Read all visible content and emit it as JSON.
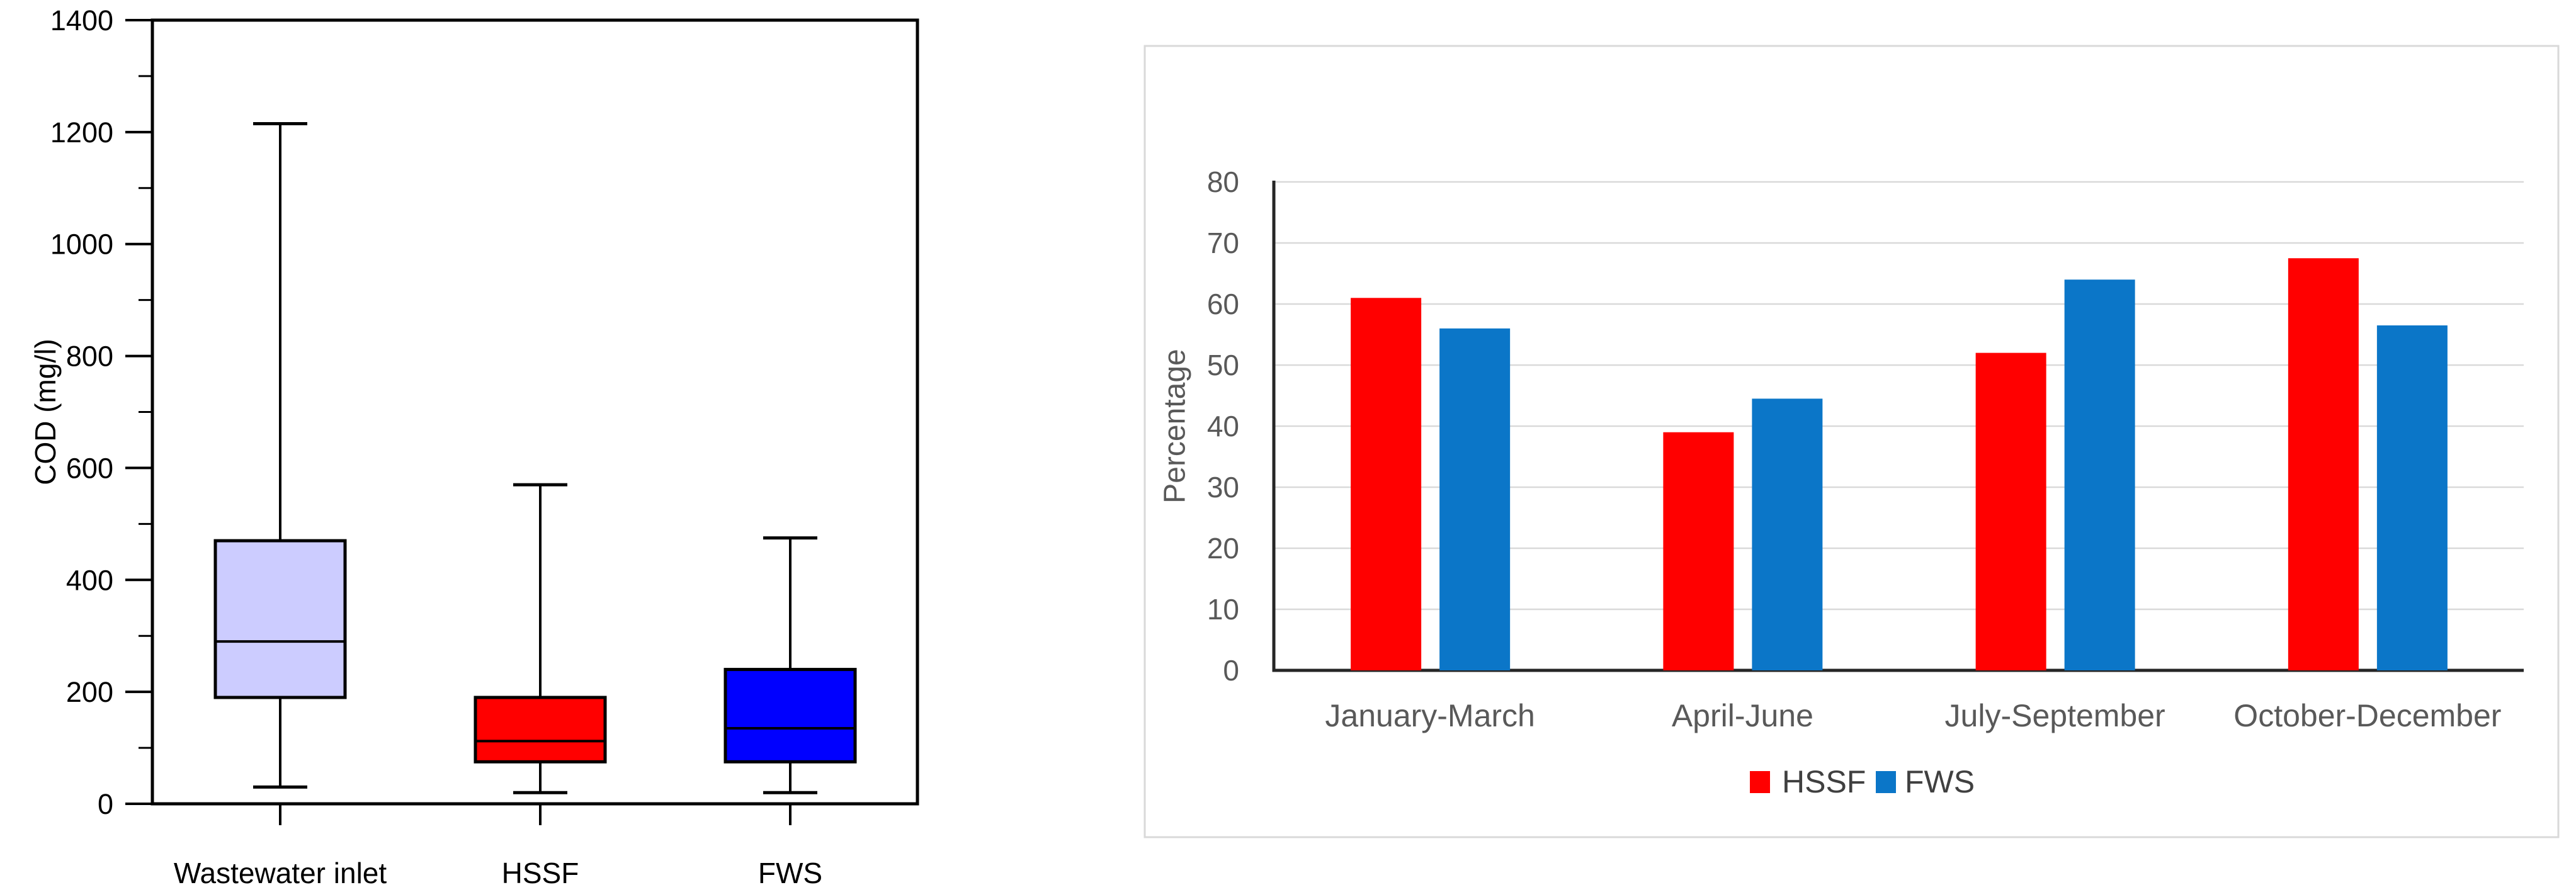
{
  "figure": {
    "background": "#ffffff"
  },
  "chart_data": [
    {
      "type": "box",
      "title": "",
      "ylabel": "COD (mg/l)",
      "ylim": [
        0,
        1400
      ],
      "ytick_major": 200,
      "ytick_minor": 100,
      "yticks": [
        0,
        200,
        400,
        600,
        800,
        1000,
        1200,
        1400
      ],
      "grid": false,
      "frame": true,
      "axis_color": "#000000",
      "text_color": "#000000",
      "legend_position": "none",
      "categories": [
        "Wastewater inlet",
        "HSSF",
        "FWS"
      ],
      "boxes": [
        {
          "label": "Wastewater inlet",
          "min": 30,
          "q1": 190,
          "median": 290,
          "q3": 470,
          "max": 1215,
          "fill": "#CCCCFF"
        },
        {
          "label": "HSSF",
          "min": 20,
          "q1": 75,
          "median": 112,
          "q3": 190,
          "max": 570,
          "fill": "#FF0000"
        },
        {
          "label": "FWS",
          "min": 20,
          "q1": 75,
          "median": 135,
          "q3": 240,
          "max": 475,
          "fill": "#0000FF"
        }
      ]
    },
    {
      "type": "bar",
      "title": "",
      "ylabel": "Percentage",
      "xlabel": "",
      "ylim": [
        0,
        80
      ],
      "ytick_step": 10,
      "yticks": [
        0,
        10,
        20,
        30,
        40,
        50,
        60,
        70,
        80
      ],
      "grid": true,
      "gridline_color": "#D9D9D9",
      "panel_border_color": "#D9D9D9",
      "axis_color": "#262626",
      "text_color": "#595959",
      "legend_text_color": "#404040",
      "legend_position": "bottom-center",
      "categories": [
        "January-March",
        "April-June",
        "July-September",
        "October-December"
      ],
      "series": [
        {
          "name": "HSSF",
          "color": "#FF0000",
          "values": [
            61,
            39,
            52,
            67.5
          ]
        },
        {
          "name": "FWS",
          "color": "#0B76C8",
          "values": [
            56,
            44.5,
            64,
            56.5
          ]
        }
      ],
      "legend_items": [
        {
          "label": "HSSF",
          "color": "#FF0000"
        },
        {
          "label": "FWS",
          "color": "#0B76C8"
        }
      ]
    }
  ]
}
